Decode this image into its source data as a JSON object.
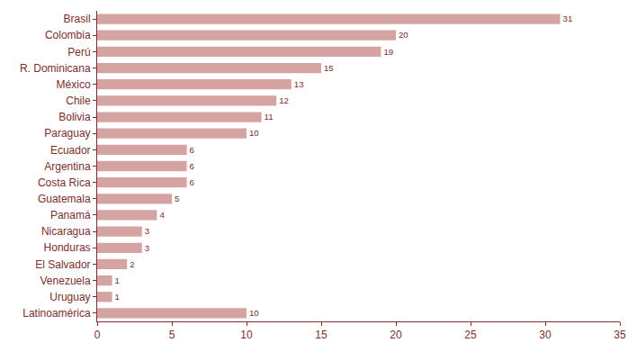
{
  "chart_data": {
    "type": "bar",
    "orientation": "horizontal",
    "categories": [
      "Brasil",
      "Colombia",
      "Perú",
      "R. Dominicana",
      "México",
      "Chile",
      "Bolivia",
      "Paraguay",
      "Ecuador",
      "Argentina",
      "Costa Rica",
      "Guatemala",
      "Panamá",
      "Nicaragua",
      "Honduras",
      "El Salvador",
      "Venezuela",
      "Uruguay",
      "Latinoamérica"
    ],
    "values": [
      31,
      20,
      19,
      15,
      13,
      12,
      11,
      10,
      6,
      6,
      6,
      5,
      4,
      3,
      3,
      2,
      1,
      1,
      10
    ],
    "color": "#d4a3a2",
    "xlim": [
      0,
      35
    ],
    "xticks": [
      0,
      5,
      10,
      15,
      20,
      25,
      30,
      35
    ],
    "grid": false,
    "data_labels": true
  }
}
